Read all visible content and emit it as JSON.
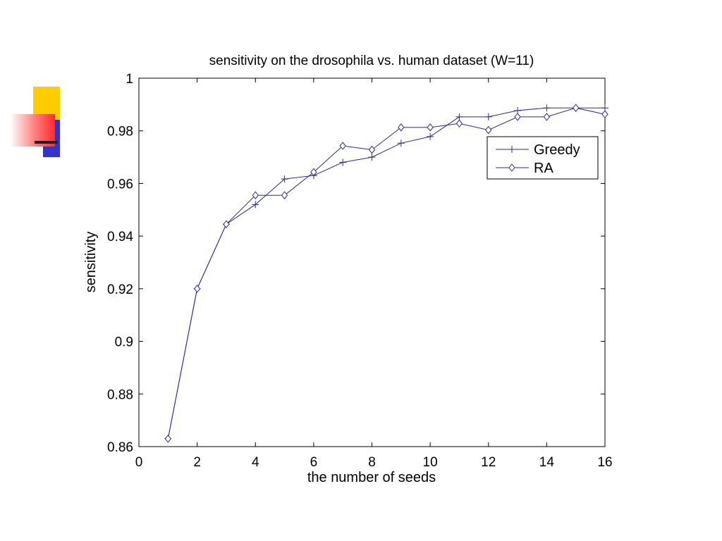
{
  "chart_data": {
    "type": "line",
    "title": "sensitivity on the drosophila vs. human dataset (W=11)",
    "xlabel": "the number of seeds",
    "ylabel": "sensitivity",
    "xlim": [
      0,
      16
    ],
    "ylim": [
      0.86,
      1
    ],
    "x_ticks": [
      "0",
      "2",
      "4",
      "6",
      "8",
      "10",
      "12",
      "14",
      "16"
    ],
    "y_ticks": [
      "0.86",
      "0.88",
      "0.9",
      "0.92",
      "0.94",
      "0.96",
      "0.98",
      "1"
    ],
    "legend_position": "top-right",
    "line_color": "#2b2b8f",
    "x": [
      1,
      2,
      3,
      4,
      5,
      6,
      7,
      8,
      9,
      10,
      11,
      12,
      13,
      14,
      15,
      16
    ],
    "series": [
      {
        "name": "Greedy",
        "marker": "plus",
        "values": [
          0.863,
          0.92,
          0.9445,
          0.952,
          0.9617,
          0.963,
          0.968,
          0.97,
          0.9753,
          0.9778,
          0.9853,
          0.9853,
          0.9877,
          0.9887,
          0.9887,
          0.9887
        ]
      },
      {
        "name": "RA",
        "marker": "diamond",
        "values": [
          0.863,
          0.92,
          0.9445,
          0.9555,
          0.9555,
          0.9643,
          0.9743,
          0.9728,
          0.9813,
          0.9813,
          0.9828,
          0.9803,
          0.9853,
          0.9853,
          0.9887,
          0.9863
        ]
      }
    ]
  }
}
